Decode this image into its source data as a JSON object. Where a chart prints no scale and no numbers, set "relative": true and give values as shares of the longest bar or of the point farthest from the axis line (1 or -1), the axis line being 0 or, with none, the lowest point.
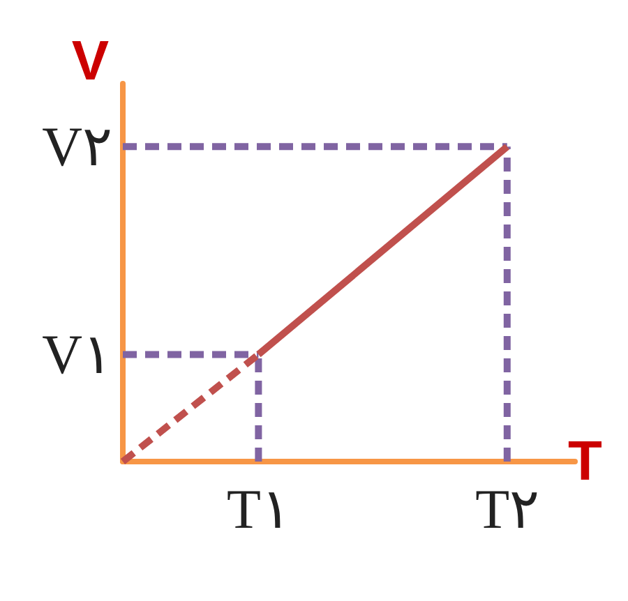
{
  "chart_data": {
    "type": "line",
    "relative": true,
    "xlabel": "T",
    "ylabel": "V",
    "marker": "none",
    "grid": false,
    "categories": [
      null,
      null,
      null,
      null,
      null,
      null,
      "T۱",
      null,
      null,
      null,
      null,
      null,
      null,
      null,
      null,
      null,
      null,
      "T۲",
      null,
      null,
      null
    ],
    "series": [
      {
        "color": "#c0504d",
        "line_style": "dashed",
        "values": [
          0,
          null,
          null,
          null,
          null,
          null,
          0.34,
          null,
          null,
          null,
          null,
          null,
          null,
          null,
          null,
          null,
          null,
          null,
          null,
          null,
          null
        ]
      },
      {
        "color": "#c0504d",
        "line_style": "solid",
        "values": [
          null,
          null,
          null,
          null,
          null,
          null,
          0.34,
          null,
          null,
          null,
          null,
          null,
          null,
          null,
          null,
          null,
          null,
          1,
          null,
          null,
          null
        ]
      }
    ],
    "ref_lines": [
      {
        "axis": "y",
        "value": 0.34,
        "label": "V۱",
        "color": "#8064a2",
        "line_style": "dashed"
      },
      {
        "axis": "y",
        "value": 1,
        "label": "V۲",
        "color": "#8064a2",
        "line_style": "dashed"
      },
      {
        "axis": "x",
        "value": "T۱",
        "color": "#8064a2",
        "line_style": "dashed"
      },
      {
        "axis": "x",
        "value": "T۲",
        "color": "#8064a2",
        "line_style": "dashed"
      }
    ]
  }
}
